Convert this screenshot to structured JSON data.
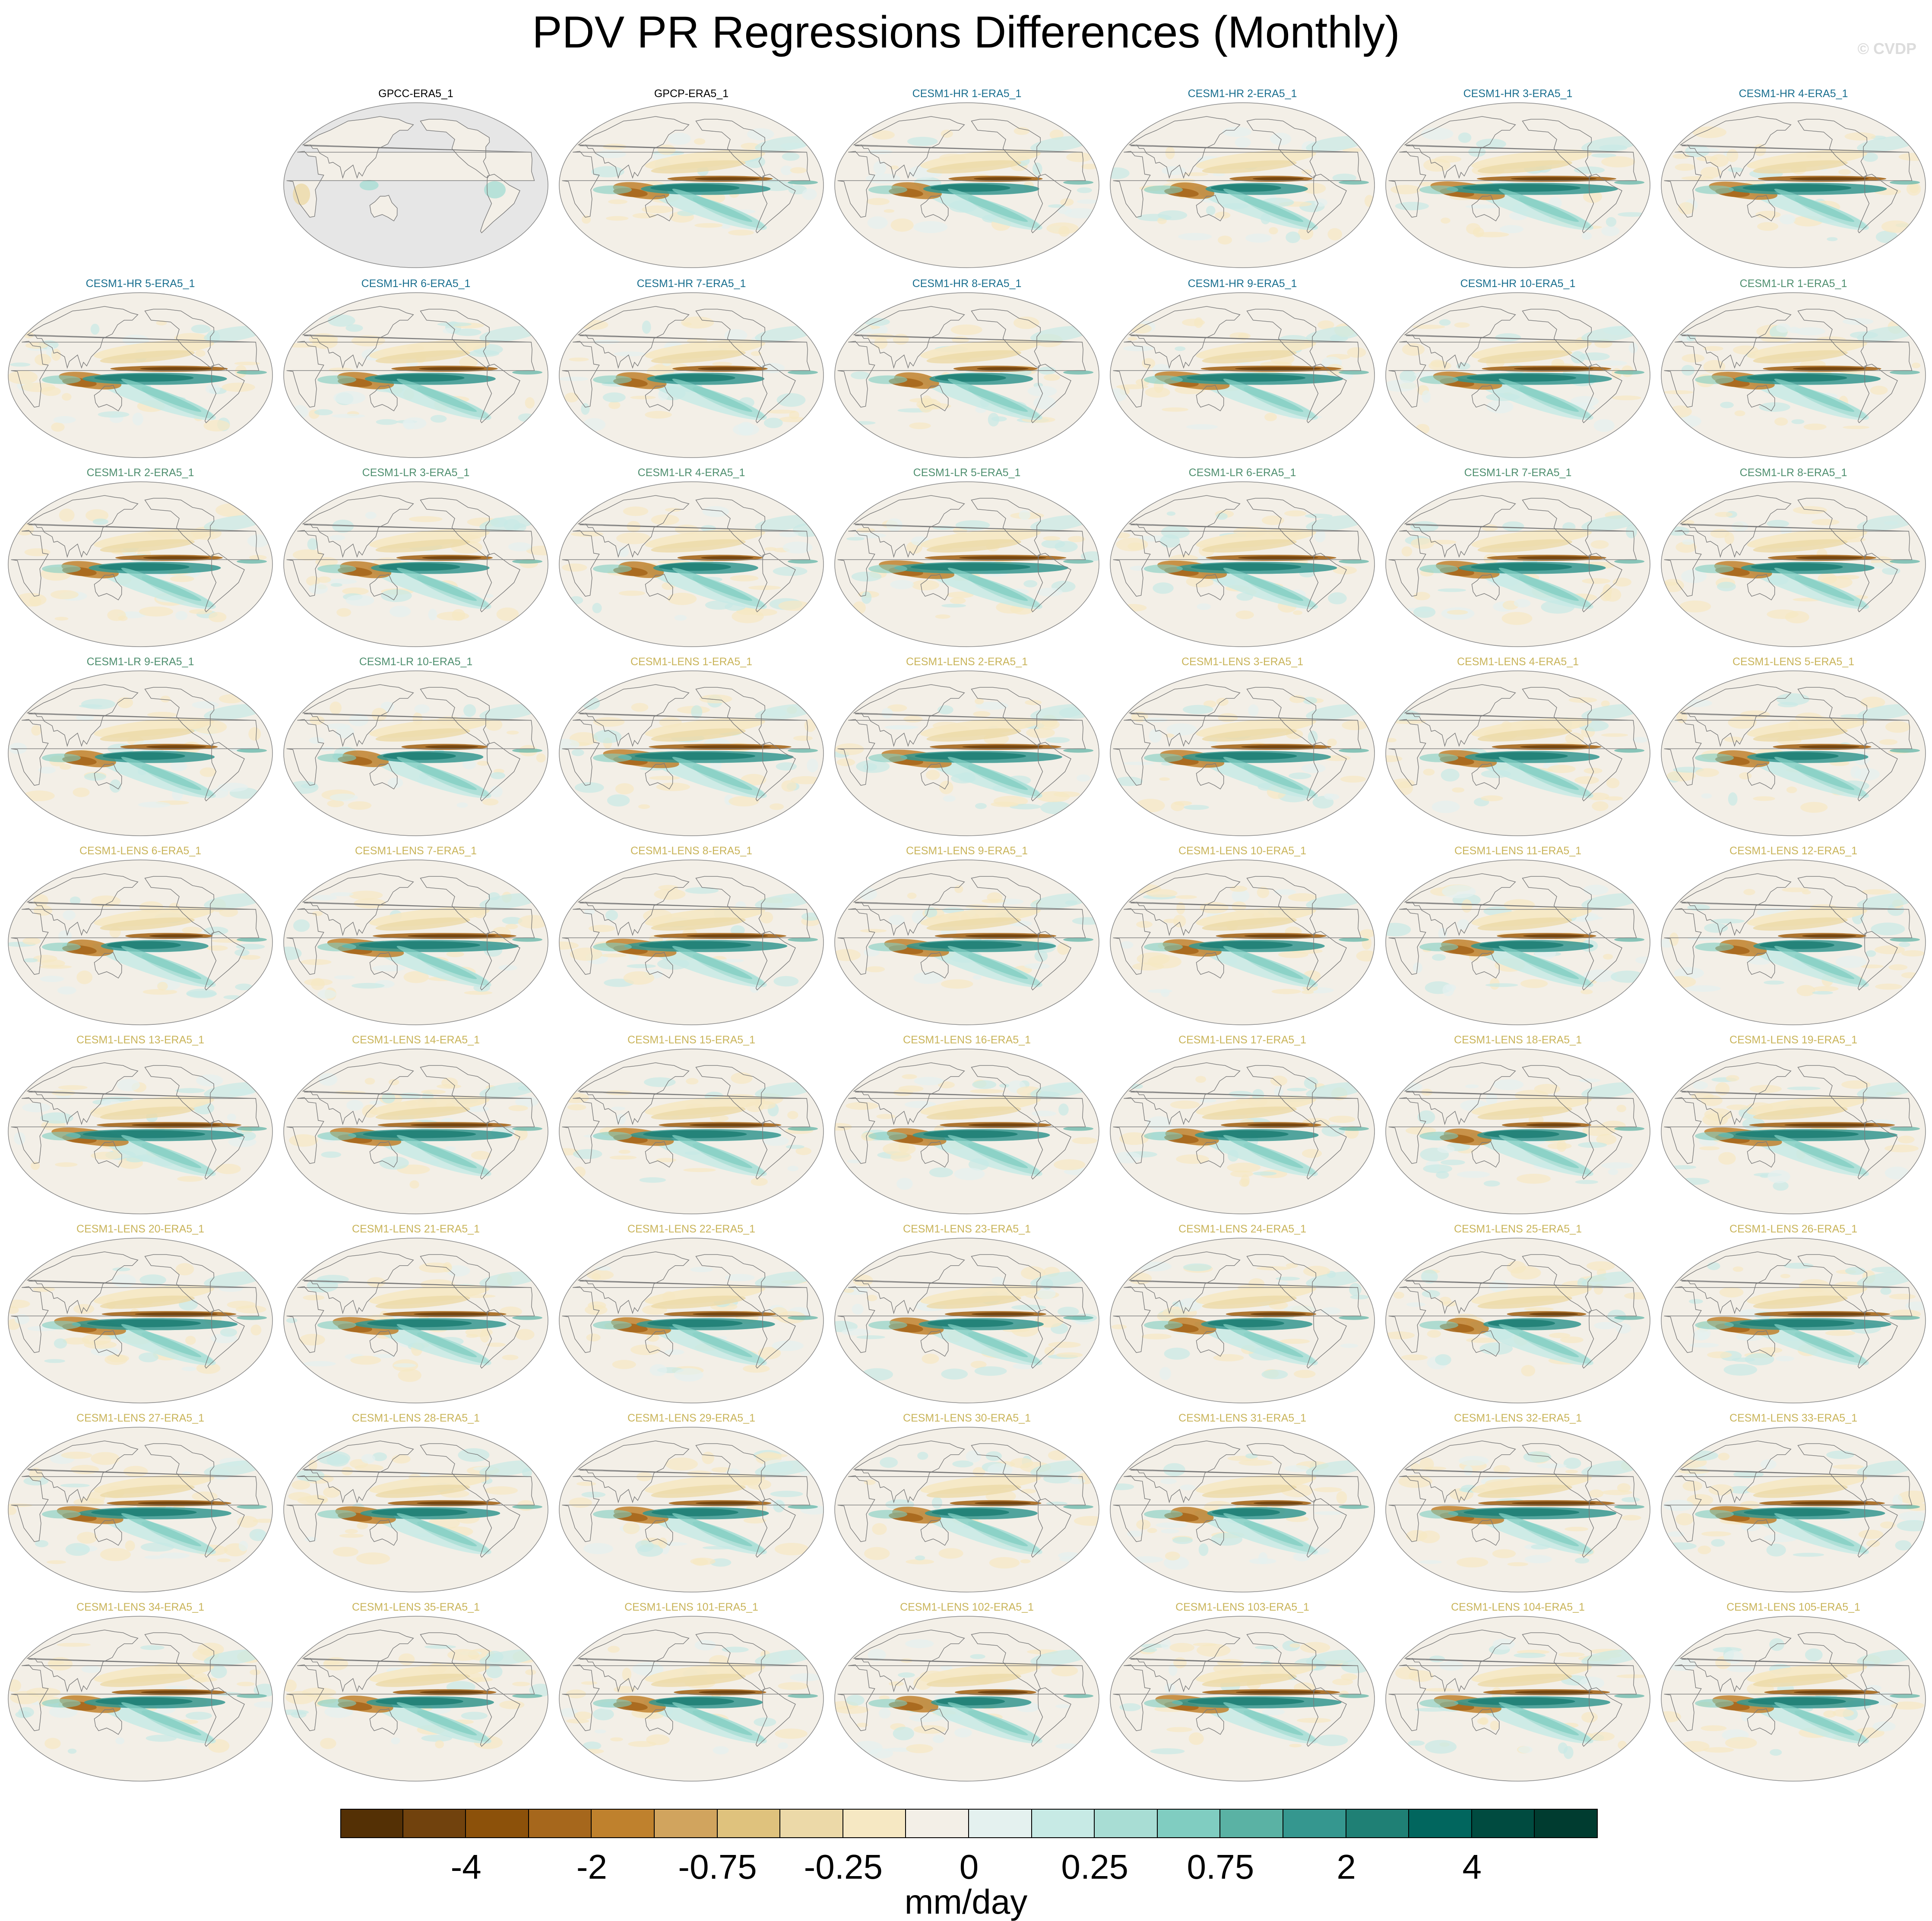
{
  "title": "PDV PR Regressions Differences (Monthly)",
  "copyright": "© CVDP",
  "colors": {
    "obs_title": "#000000",
    "hr_title": "#1a6f8f",
    "lr_title": "#4f8f6f",
    "lens_title": "#c9b45a",
    "land_missing": "#e6e6e6",
    "coast": "#7a7a7a"
  },
  "chart_data": {
    "type": "heatmap",
    "layout": "grid of global map panels (Robinson projection), 7 columns x 9 rows",
    "panels": [
      {
        "title": "GPCC-ERA5_1",
        "group": "obs",
        "note": "land only, ocean missing"
      },
      {
        "title": "GPCP-ERA5_1",
        "group": "obs"
      },
      {
        "title": "CESM1-HR 1-ERA5_1",
        "group": "hr"
      },
      {
        "title": "CESM1-HR 2-ERA5_1",
        "group": "hr"
      },
      {
        "title": "CESM1-HR 3-ERA5_1",
        "group": "hr"
      },
      {
        "title": "CESM1-HR 4-ERA5_1",
        "group": "hr"
      },
      {
        "title": "CESM1-HR 5-ERA5_1",
        "group": "hr"
      },
      {
        "title": "CESM1-HR 6-ERA5_1",
        "group": "hr"
      },
      {
        "title": "CESM1-HR 7-ERA5_1",
        "group": "hr"
      },
      {
        "title": "CESM1-HR 8-ERA5_1",
        "group": "hr"
      },
      {
        "title": "CESM1-HR 9-ERA5_1",
        "group": "hr"
      },
      {
        "title": "CESM1-HR 10-ERA5_1",
        "group": "hr"
      },
      {
        "title": "CESM1-LR 1-ERA5_1",
        "group": "lr"
      },
      {
        "title": "CESM1-LR 2-ERA5_1",
        "group": "lr"
      },
      {
        "title": "CESM1-LR 3-ERA5_1",
        "group": "lr"
      },
      {
        "title": "CESM1-LR 4-ERA5_1",
        "group": "lr"
      },
      {
        "title": "CESM1-LR 5-ERA5_1",
        "group": "lr"
      },
      {
        "title": "CESM1-LR 6-ERA5_1",
        "group": "lr"
      },
      {
        "title": "CESM1-LR 7-ERA5_1",
        "group": "lr"
      },
      {
        "title": "CESM1-LR 8-ERA5_1",
        "group": "lr"
      },
      {
        "title": "CESM1-LR 9-ERA5_1",
        "group": "lr"
      },
      {
        "title": "CESM1-LR 10-ERA5_1",
        "group": "lr"
      },
      {
        "title": "CESM1-LENS 1-ERA5_1",
        "group": "lens"
      },
      {
        "title": "CESM1-LENS 2-ERA5_1",
        "group": "lens"
      },
      {
        "title": "CESM1-LENS 3-ERA5_1",
        "group": "lens"
      },
      {
        "title": "CESM1-LENS 4-ERA5_1",
        "group": "lens"
      },
      {
        "title": "CESM1-LENS 5-ERA5_1",
        "group": "lens"
      },
      {
        "title": "CESM1-LENS 6-ERA5_1",
        "group": "lens"
      },
      {
        "title": "CESM1-LENS 7-ERA5_1",
        "group": "lens"
      },
      {
        "title": "CESM1-LENS 8-ERA5_1",
        "group": "lens"
      },
      {
        "title": "CESM1-LENS 9-ERA5_1",
        "group": "lens"
      },
      {
        "title": "CESM1-LENS 10-ERA5_1",
        "group": "lens"
      },
      {
        "title": "CESM1-LENS 11-ERA5_1",
        "group": "lens"
      },
      {
        "title": "CESM1-LENS 12-ERA5_1",
        "group": "lens"
      },
      {
        "title": "CESM1-LENS 13-ERA5_1",
        "group": "lens"
      },
      {
        "title": "CESM1-LENS 14-ERA5_1",
        "group": "lens"
      },
      {
        "title": "CESM1-LENS 15-ERA5_1",
        "group": "lens"
      },
      {
        "title": "CESM1-LENS 16-ERA5_1",
        "group": "lens"
      },
      {
        "title": "CESM1-LENS 17-ERA5_1",
        "group": "lens"
      },
      {
        "title": "CESM1-LENS 18-ERA5_1",
        "group": "lens"
      },
      {
        "title": "CESM1-LENS 19-ERA5_1",
        "group": "lens"
      },
      {
        "title": "CESM1-LENS 20-ERA5_1",
        "group": "lens"
      },
      {
        "title": "CESM1-LENS 21-ERA5_1",
        "group": "lens"
      },
      {
        "title": "CESM1-LENS 22-ERA5_1",
        "group": "lens"
      },
      {
        "title": "CESM1-LENS 23-ERA5_1",
        "group": "lens"
      },
      {
        "title": "CESM1-LENS 24-ERA5_1",
        "group": "lens"
      },
      {
        "title": "CESM1-LENS 25-ERA5_1",
        "group": "lens"
      },
      {
        "title": "CESM1-LENS 26-ERA5_1",
        "group": "lens"
      },
      {
        "title": "CESM1-LENS 27-ERA5_1",
        "group": "lens"
      },
      {
        "title": "CESM1-LENS 28-ERA5_1",
        "group": "lens"
      },
      {
        "title": "CESM1-LENS 29-ERA5_1",
        "group": "lens"
      },
      {
        "title": "CESM1-LENS 30-ERA5_1",
        "group": "lens"
      },
      {
        "title": "CESM1-LENS 31-ERA5_1",
        "group": "lens"
      },
      {
        "title": "CESM1-LENS 32-ERA5_1",
        "group": "lens"
      },
      {
        "title": "CESM1-LENS 33-ERA5_1",
        "group": "lens"
      },
      {
        "title": "CESM1-LENS 34-ERA5_1",
        "group": "lens"
      },
      {
        "title": "CESM1-LENS 35-ERA5_1",
        "group": "lens"
      },
      {
        "title": "CESM1-LENS 101-ERA5_1",
        "group": "lens"
      },
      {
        "title": "CESM1-LENS 102-ERA5_1",
        "group": "lens"
      },
      {
        "title": "CESM1-LENS 103-ERA5_1",
        "group": "lens"
      },
      {
        "title": "CESM1-LENS 104-ERA5_1",
        "group": "lens"
      },
      {
        "title": "CESM1-LENS 105-ERA5_1",
        "group": "lens"
      }
    ],
    "colorbar": {
      "unit": "mm/day",
      "tick_labels": [
        "-4",
        "-2",
        "-0.75",
        "-0.25",
        "0",
        "0.25",
        "0.75",
        "2",
        "4"
      ],
      "colors": [
        "#543005",
        "#71420d",
        "#8c510a",
        "#a6671c",
        "#bf812d",
        "#d1a45e",
        "#dfc27d",
        "#ecd9a8",
        "#f6e8c3",
        "#f3efe7",
        "#e4f1ef",
        "#c7eae5",
        "#a8ddd4",
        "#80cdc1",
        "#5ab2a4",
        "#35978f",
        "#1f8075",
        "#01665e",
        "#004b40",
        "#003c30"
      ]
    }
  }
}
